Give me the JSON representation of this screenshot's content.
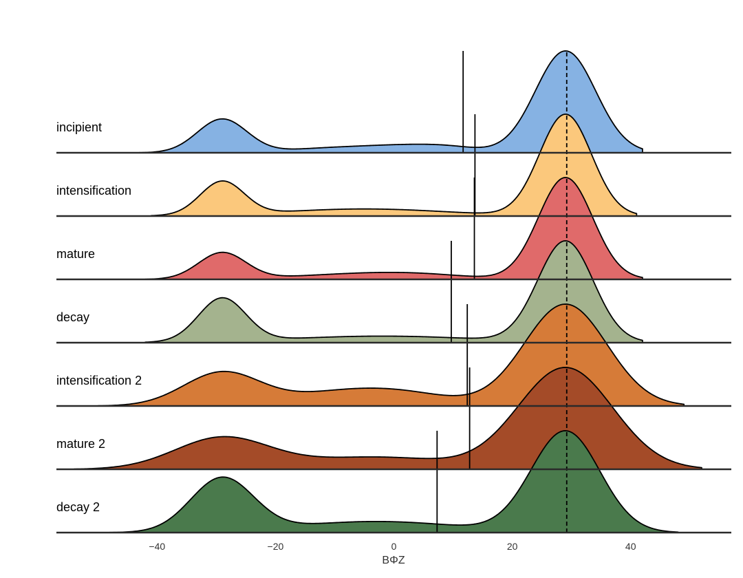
{
  "chart_data": {
    "type": "ridgeline",
    "xlabel": "BΦZ",
    "xlim": [
      -57,
      57
    ],
    "xticks": [
      -40,
      -20,
      0,
      20,
      40
    ],
    "xtick_labels": [
      "−40",
      "−20",
      "0",
      "20",
      "40"
    ],
    "grid": false,
    "legend": "none",
    "series": [
      {
        "name": "incipient",
        "color": "#86b2e3",
        "support": [
          -43,
          42
        ],
        "components": [
          {
            "mean": -29,
            "sd": 4.2,
            "height": 0.33
          },
          {
            "mean": -10,
            "sd": 8,
            "height": 0.045
          },
          {
            "mean": 3,
            "sd": 7,
            "height": 0.06
          },
          {
            "mean": 10,
            "sd": 5,
            "height": 0.03
          },
          {
            "mean": 29,
            "sd": 5.1,
            "height": 1.0
          }
        ],
        "mean_marker": 11.7,
        "mode_marker": 29.2
      },
      {
        "name": "intensification",
        "color": "#fbc87c",
        "support": [
          -41,
          41
        ],
        "components": [
          {
            "mean": -29,
            "sd": 3.7,
            "height": 0.33
          },
          {
            "mean": -5,
            "sd": 14,
            "height": 0.07
          },
          {
            "mean": 29,
            "sd": 4.4,
            "height": 1.0
          }
        ],
        "mean_marker": 13.7,
        "mode_marker": 29.2
      },
      {
        "name": "mature",
        "color": "#e06a6a",
        "support": [
          -42,
          42
        ],
        "components": [
          {
            "mean": -29,
            "sd": 4.0,
            "height": 0.26
          },
          {
            "mean": 3,
            "sd": 9,
            "height": 0.05
          },
          {
            "mean": -10,
            "sd": 10,
            "height": 0.035
          },
          {
            "mean": 29,
            "sd": 4.6,
            "height": 1.0
          }
        ],
        "mean_marker": 13.6,
        "mode_marker": 29.2
      },
      {
        "name": "decay",
        "color": "#a4b38e",
        "support": [
          -42,
          42
        ],
        "components": [
          {
            "mean": -29,
            "sd": 4.0,
            "height": 0.43
          },
          {
            "mean": -2,
            "sd": 16,
            "height": 0.065
          },
          {
            "mean": 29,
            "sd": 4.7,
            "height": 1.0
          }
        ],
        "mean_marker": 9.7,
        "mode_marker": 29.2
      },
      {
        "name": "intensification 2",
        "color": "#d67b38",
        "support": [
          -50,
          49
        ],
        "components": [
          {
            "mean": -29,
            "sd": 6.5,
            "height": 0.33
          },
          {
            "mean": 0,
            "sd": 9,
            "height": 0.14
          },
          {
            "mean": -12,
            "sd": 8,
            "height": 0.08
          },
          {
            "mean": 29,
            "sd": 7.0,
            "height": 1.0
          }
        ],
        "mean_marker": 12.4,
        "mode_marker": 29.2
      },
      {
        "name": "mature 2",
        "color": "#a44b28",
        "support": [
          -54,
          52
        ],
        "components": [
          {
            "mean": -29,
            "sd": 8.0,
            "height": 0.31
          },
          {
            "mean": -3,
            "sd": 12,
            "height": 0.12
          },
          {
            "mean": 29,
            "sd": 8.0,
            "height": 1.0
          }
        ],
        "mean_marker": 12.8,
        "mode_marker": 29.2
      },
      {
        "name": "decay 2",
        "color": "#4a7a4c",
        "support": [
          -48,
          48
        ],
        "components": [
          {
            "mean": -29,
            "sd": 5.3,
            "height": 0.53
          },
          {
            "mean": -3,
            "sd": 14,
            "height": 0.11
          },
          {
            "mean": 29,
            "sd": 5.8,
            "height": 1.0
          }
        ],
        "mean_marker": 7.3,
        "mode_marker": 29.2
      }
    ]
  }
}
